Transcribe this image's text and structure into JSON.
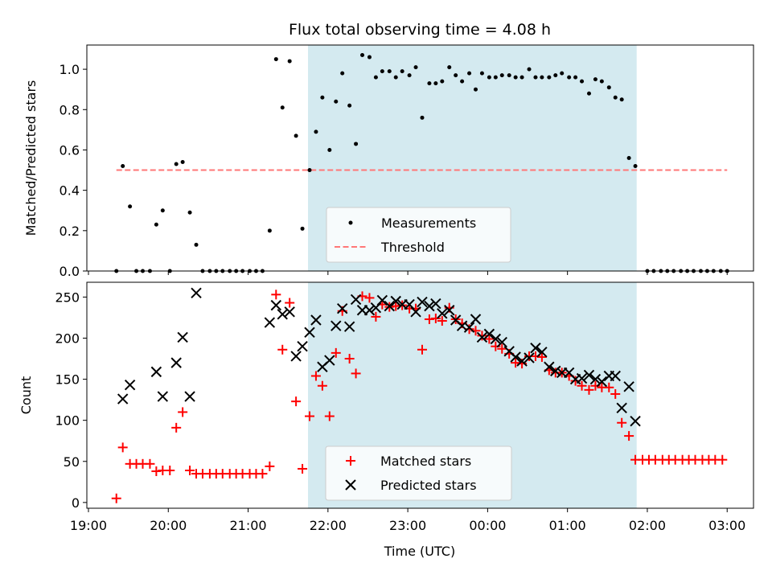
{
  "chart_data": [
    {
      "type": "scatter",
      "title": "Flux total observing time = 4.08 h",
      "ylabel": "Matched/Predicted stars",
      "ylim": [
        0,
        1.12
      ],
      "yticks": [
        0.0,
        0.2,
        0.4,
        0.6,
        0.8,
        1.0
      ],
      "ytick_labels": [
        "0.0",
        "0.2",
        "0.4",
        "0.6",
        "0.8",
        "1.0"
      ],
      "shaded_interval": {
        "start": "21:45",
        "end": "01:52",
        "color": "#d4eaf0"
      },
      "legend": {
        "position": "lower-center",
        "entries": [
          "Measurements",
          "Threshold"
        ]
      },
      "series": [
        {
          "name": "Measurements",
          "marker": "dot",
          "color": "#000000",
          "points": [
            [
              19.35,
              0.0
            ],
            [
              19.43,
              0.52
            ],
            [
              19.52,
              0.32
            ],
            [
              19.6,
              0.0
            ],
            [
              19.68,
              0.0
            ],
            [
              19.77,
              0.0
            ],
            [
              19.85,
              0.23
            ],
            [
              19.93,
              0.3
            ],
            [
              20.02,
              0.0
            ],
            [
              20.1,
              0.53
            ],
            [
              20.18,
              0.54
            ],
            [
              20.27,
              0.29
            ],
            [
              20.35,
              0.13
            ],
            [
              20.43,
              0.0
            ],
            [
              20.52,
              0.0
            ],
            [
              20.6,
              0.0
            ],
            [
              20.68,
              0.0
            ],
            [
              20.77,
              0.0
            ],
            [
              20.85,
              0.0
            ],
            [
              20.93,
              0.0
            ],
            [
              21.02,
              0.0
            ],
            [
              21.1,
              0.0
            ],
            [
              21.18,
              0.0
            ],
            [
              21.27,
              0.2
            ],
            [
              21.35,
              1.05
            ],
            [
              21.43,
              0.81
            ],
            [
              21.52,
              1.04
            ],
            [
              21.6,
              0.67
            ],
            [
              21.68,
              0.21
            ],
            [
              21.77,
              0.5
            ],
            [
              21.85,
              0.69
            ],
            [
              21.93,
              0.86
            ],
            [
              22.02,
              0.6
            ],
            [
              22.1,
              0.84
            ],
            [
              22.18,
              0.98
            ],
            [
              22.27,
              0.82
            ],
            [
              22.35,
              0.63
            ],
            [
              22.43,
              1.07
            ],
            [
              22.52,
              1.06
            ],
            [
              22.6,
              0.96
            ],
            [
              22.68,
              0.99
            ],
            [
              22.77,
              0.99
            ],
            [
              22.85,
              0.96
            ],
            [
              22.93,
              0.99
            ],
            [
              23.02,
              0.97
            ],
            [
              23.1,
              1.01
            ],
            [
              23.18,
              0.76
            ],
            [
              23.27,
              0.93
            ],
            [
              23.35,
              0.93
            ],
            [
              23.43,
              0.94
            ],
            [
              23.52,
              1.01
            ],
            [
              23.6,
              0.97
            ],
            [
              23.68,
              0.94
            ],
            [
              23.77,
              0.98
            ],
            [
              23.85,
              0.9
            ],
            [
              23.93,
              0.98
            ],
            [
              24.02,
              0.96
            ],
            [
              24.1,
              0.96
            ],
            [
              24.18,
              0.97
            ],
            [
              24.27,
              0.97
            ],
            [
              24.35,
              0.96
            ],
            [
              24.43,
              0.96
            ],
            [
              24.52,
              1.0
            ],
            [
              24.6,
              0.96
            ],
            [
              24.68,
              0.96
            ],
            [
              24.77,
              0.96
            ],
            [
              24.85,
              0.97
            ],
            [
              24.93,
              0.98
            ],
            [
              25.02,
              0.96
            ],
            [
              25.1,
              0.96
            ],
            [
              25.18,
              0.94
            ],
            [
              25.27,
              0.88
            ],
            [
              25.35,
              0.95
            ],
            [
              25.43,
              0.94
            ],
            [
              25.52,
              0.91
            ],
            [
              25.6,
              0.86
            ],
            [
              25.68,
              0.85
            ],
            [
              25.77,
              0.56
            ],
            [
              25.85,
              0.52
            ],
            [
              26.0,
              0.0
            ],
            [
              26.08,
              0.0
            ],
            [
              26.17,
              0.0
            ],
            [
              26.25,
              0.0
            ],
            [
              26.33,
              0.0
            ],
            [
              26.42,
              0.0
            ],
            [
              26.5,
              0.0
            ],
            [
              26.58,
              0.0
            ],
            [
              26.67,
              0.0
            ],
            [
              26.75,
              0.0
            ],
            [
              26.83,
              0.0
            ],
            [
              26.92,
              0.0
            ],
            [
              27.0,
              0.0
            ]
          ]
        },
        {
          "name": "Threshold",
          "style": "dashed",
          "color": "#ff7777",
          "x": [
            19.35,
            27.0
          ],
          "values": [
            0.5,
            0.5
          ]
        }
      ]
    },
    {
      "type": "scatter",
      "xlabel": "Time (UTC)",
      "ylabel": "Count",
      "ylim": [
        -7,
        268
      ],
      "yticks": [
        0,
        50,
        100,
        150,
        200,
        250
      ],
      "ytick_labels": [
        "0",
        "50",
        "100",
        "150",
        "200",
        "250"
      ],
      "xlim": [
        18.98,
        27.33
      ],
      "xticks": [
        19,
        20,
        21,
        22,
        23,
        24,
        25,
        26,
        27
      ],
      "xtick_labels": [
        "19:00",
        "20:00",
        "21:00",
        "22:00",
        "23:00",
        "00:00",
        "01:00",
        "02:00",
        "03:00"
      ],
      "shaded_interval": {
        "start": "21:45",
        "end": "01:52",
        "color": "#d4eaf0"
      },
      "legend": {
        "position": "lower-center",
        "entries": [
          "Matched stars",
          "Predicted stars"
        ]
      },
      "series": [
        {
          "name": "Matched stars",
          "marker": "plus",
          "color": "#ff0000",
          "points": [
            [
              19.35,
              5
            ],
            [
              19.43,
              67
            ],
            [
              19.52,
              47
            ],
            [
              19.6,
              47
            ],
            [
              19.68,
              47
            ],
            [
              19.77,
              47
            ],
            [
              19.85,
              38
            ],
            [
              19.93,
              39
            ],
            [
              20.02,
              39
            ],
            [
              20.1,
              91
            ],
            [
              20.18,
              110
            ],
            [
              20.27,
              39
            ],
            [
              20.35,
              35
            ],
            [
              20.43,
              35
            ],
            [
              20.52,
              35
            ],
            [
              20.6,
              35
            ],
            [
              20.68,
              35
            ],
            [
              20.77,
              35
            ],
            [
              20.85,
              35
            ],
            [
              20.93,
              35
            ],
            [
              21.02,
              35
            ],
            [
              21.1,
              35
            ],
            [
              21.18,
              35
            ],
            [
              21.27,
              44
            ],
            [
              21.35,
              253
            ],
            [
              21.43,
              186
            ],
            [
              21.52,
              243
            ],
            [
              21.6,
              123
            ],
            [
              21.68,
              41
            ],
            [
              21.77,
              105
            ],
            [
              21.85,
              154
            ],
            [
              21.93,
              142
            ],
            [
              22.02,
              105
            ],
            [
              22.1,
              182
            ],
            [
              22.18,
              233
            ],
            [
              22.27,
              175
            ],
            [
              22.35,
              157
            ],
            [
              22.43,
              251
            ],
            [
              22.52,
              249
            ],
            [
              22.6,
              226
            ],
            [
              22.68,
              241
            ],
            [
              22.77,
              238
            ],
            [
              22.85,
              239
            ],
            [
              22.93,
              240
            ],
            [
              23.02,
              236
            ],
            [
              23.1,
              236
            ],
            [
              23.18,
              186
            ],
            [
              23.27,
              223
            ],
            [
              23.35,
              224
            ],
            [
              23.43,
              221
            ],
            [
              23.52,
              237
            ],
            [
              23.6,
              223
            ],
            [
              23.68,
              218
            ],
            [
              23.77,
              211
            ],
            [
              23.85,
              209
            ],
            [
              23.93,
              203
            ],
            [
              24.02,
              199
            ],
            [
              24.1,
              190
            ],
            [
              24.18,
              187
            ],
            [
              24.27,
              181
            ],
            [
              24.35,
              170
            ],
            [
              24.43,
              169
            ],
            [
              24.52,
              178
            ],
            [
              24.6,
              178
            ],
            [
              24.68,
              177
            ],
            [
              24.77,
              161
            ],
            [
              24.85,
              158
            ],
            [
              24.93,
              158
            ],
            [
              25.02,
              154
            ],
            [
              25.1,
              148
            ],
            [
              25.18,
              142
            ],
            [
              25.27,
              137
            ],
            [
              25.35,
              142
            ],
            [
              25.43,
              140
            ],
            [
              25.52,
              140
            ],
            [
              25.6,
              132
            ],
            [
              25.68,
              97
            ],
            [
              25.77,
              81
            ],
            [
              25.85,
              52
            ],
            [
              25.94,
              52
            ],
            [
              26.02,
              52
            ],
            [
              26.1,
              52
            ],
            [
              26.19,
              52
            ],
            [
              26.27,
              52
            ],
            [
              26.35,
              52
            ],
            [
              26.44,
              52
            ],
            [
              26.52,
              52
            ],
            [
              26.6,
              52
            ],
            [
              26.69,
              52
            ],
            [
              26.77,
              52
            ],
            [
              26.85,
              52
            ],
            [
              26.94,
              52
            ]
          ]
        },
        {
          "name": "Predicted stars",
          "marker": "x",
          "color": "#000000",
          "points": [
            [
              19.43,
              126
            ],
            [
              19.52,
              143
            ],
            [
              19.85,
              159
            ],
            [
              19.93,
              129
            ],
            [
              20.1,
              170
            ],
            [
              20.18,
              201
            ],
            [
              20.27,
              129
            ],
            [
              20.35,
              255
            ],
            [
              21.27,
              219
            ],
            [
              21.35,
              240
            ],
            [
              21.43,
              229
            ],
            [
              21.52,
              232
            ],
            [
              21.6,
              178
            ],
            [
              21.68,
              190
            ],
            [
              21.77,
              207
            ],
            [
              21.85,
              222
            ],
            [
              21.93,
              165
            ],
            [
              22.02,
              173
            ],
            [
              22.1,
              215
            ],
            [
              22.18,
              236
            ],
            [
              22.27,
              214
            ],
            [
              22.35,
              247
            ],
            [
              22.43,
              234
            ],
            [
              22.52,
              234
            ],
            [
              22.6,
              237
            ],
            [
              22.68,
              246
            ],
            [
              22.77,
              239
            ],
            [
              22.85,
              245
            ],
            [
              22.93,
              241
            ],
            [
              23.02,
              241
            ],
            [
              23.1,
              232
            ],
            [
              23.18,
              244
            ],
            [
              23.27,
              239
            ],
            [
              23.35,
              242
            ],
            [
              23.43,
              230
            ],
            [
              23.52,
              234
            ],
            [
              23.6,
              222
            ],
            [
              23.68,
              215
            ],
            [
              23.77,
              213
            ],
            [
              23.85,
              223
            ],
            [
              23.93,
              201
            ],
            [
              24.02,
              205
            ],
            [
              24.1,
              199
            ],
            [
              24.18,
              195
            ],
            [
              24.27,
              184
            ],
            [
              24.35,
              177
            ],
            [
              24.43,
              172
            ],
            [
              24.52,
              176
            ],
            [
              24.6,
              188
            ],
            [
              24.68,
              183
            ],
            [
              24.77,
              165
            ],
            [
              24.85,
              160
            ],
            [
              24.93,
              158
            ],
            [
              25.02,
              158
            ],
            [
              25.1,
              150
            ],
            [
              25.18,
              151
            ],
            [
              25.27,
              155
            ],
            [
              25.35,
              150
            ],
            [
              25.43,
              147
            ],
            [
              25.52,
              154
            ],
            [
              25.6,
              154
            ],
            [
              25.68,
              115
            ],
            [
              25.77,
              141
            ],
            [
              25.85,
              99
            ]
          ]
        }
      ]
    }
  ]
}
